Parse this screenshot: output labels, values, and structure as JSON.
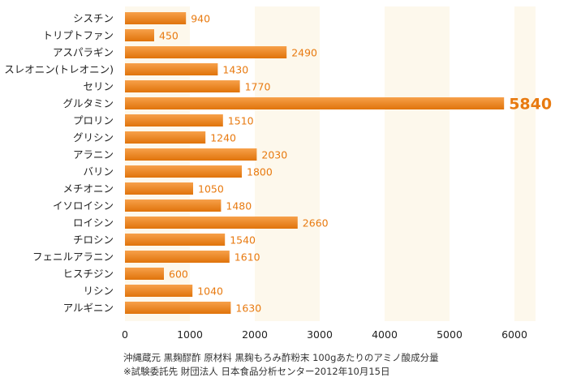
{
  "chart_data": {
    "type": "bar",
    "orientation": "horizontal",
    "categories": [
      "シスチン",
      "トリプトファン",
      "アスパラギン",
      "スレオニン(トレオニン)",
      "セリン",
      "グルタミン",
      "プロリン",
      "グリシン",
      "アラニン",
      "バリン",
      "メチオニン",
      "イソロイシン",
      "ロイシン",
      "チロシン",
      "フェニルアラニン",
      "ヒスチジン",
      "リシン",
      "アルギニン"
    ],
    "values": [
      940,
      450,
      2490,
      1430,
      1770,
      5840,
      1510,
      1240,
      2030,
      1800,
      1050,
      1480,
      2660,
      1540,
      1610,
      600,
      1040,
      1630
    ],
    "data_labels": [
      "940",
      "450",
      "2490",
      "1430",
      "1770",
      "5840",
      "1510",
      "1240",
      "2030",
      "1800",
      "1050",
      "1480",
      "2660",
      "1540",
      "1610",
      "600",
      "1040",
      "1630"
    ],
    "highlight_category": "グルタミン",
    "xlim": [
      0,
      6000
    ],
    "x_ticks": [
      "0",
      "1000",
      "2000",
      "3000",
      "4000",
      "5000",
      "6000"
    ],
    "x_tick_values": [
      0,
      1000,
      2000,
      3000,
      4000,
      5000,
      6000
    ],
    "grid": true,
    "legend": "none",
    "title": "",
    "xlabel": "",
    "ylabel": ""
  },
  "footnotes": {
    "line1": "沖縄蔵元 黒麹醪酢 原材料 黒麹もろみ酢粉末 100gあたりのアミノ酸成分量",
    "line2": "※試験委託先 財団法人 日本食品分析センター2012年10月15日"
  },
  "colors": {
    "bar_light": "#f7a04a",
    "bar_dark": "#e0730b",
    "value_label": "#e87a10",
    "band_light": "#fdf8ec",
    "band_white": "#ffffff",
    "category_text": "#222222",
    "axis_text": "#222222"
  }
}
